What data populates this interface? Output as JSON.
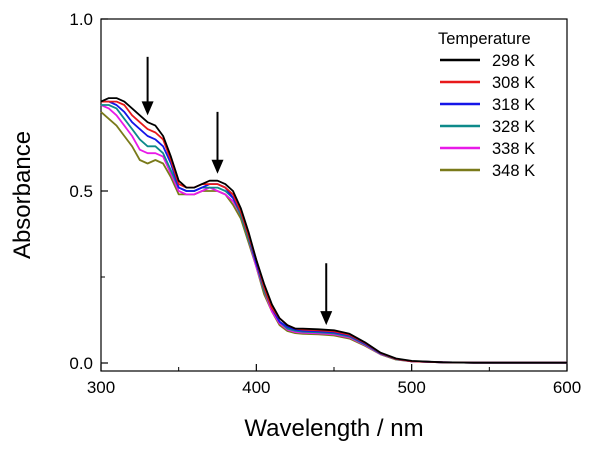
{
  "chart_data": {
    "type": "line",
    "title": "",
    "xlabel": "Wavelength / nm",
    "ylabel": "Absorbance",
    "xlim": [
      300,
      600
    ],
    "ylim": [
      0.0,
      1.0
    ],
    "xticks": [
      300,
      400,
      500,
      600
    ],
    "xtick_labels": [
      "300",
      "400",
      "500",
      "600"
    ],
    "yticks": [
      0.0,
      0.5,
      1.0
    ],
    "ytick_labels": [
      "0.0",
      "0.5",
      "1.0"
    ],
    "grid": false,
    "legend": {
      "title": "Temperature",
      "placement": "top-right"
    },
    "x": [
      300,
      305,
      310,
      315,
      320,
      325,
      330,
      335,
      340,
      345,
      350,
      355,
      360,
      365,
      370,
      375,
      380,
      385,
      390,
      395,
      400,
      405,
      410,
      415,
      420,
      425,
      430,
      440,
      450,
      460,
      470,
      480,
      490,
      500,
      520,
      540,
      560,
      580,
      600
    ],
    "series": [
      {
        "name": "298 K",
        "color": "#000000",
        "values": [
          0.76,
          0.77,
          0.77,
          0.76,
          0.74,
          0.72,
          0.7,
          0.69,
          0.66,
          0.6,
          0.53,
          0.51,
          0.51,
          0.52,
          0.53,
          0.53,
          0.52,
          0.5,
          0.45,
          0.38,
          0.3,
          0.23,
          0.17,
          0.13,
          0.11,
          0.1,
          0.1,
          0.098,
          0.095,
          0.085,
          0.06,
          0.03,
          0.013,
          0.006,
          0.002,
          0.001,
          0.001,
          0.001,
          0.001
        ]
      },
      {
        "name": "308 K",
        "color": "#e8191b",
        "values": [
          0.76,
          0.76,
          0.76,
          0.75,
          0.72,
          0.7,
          0.68,
          0.67,
          0.65,
          0.59,
          0.52,
          0.51,
          0.51,
          0.52,
          0.52,
          0.52,
          0.51,
          0.49,
          0.44,
          0.37,
          0.3,
          0.22,
          0.16,
          0.13,
          0.11,
          0.1,
          0.097,
          0.095,
          0.092,
          0.082,
          0.058,
          0.029,
          0.012,
          0.005,
          0.002,
          0.001,
          0.001,
          0.001,
          0.001
        ]
      },
      {
        "name": "318 K",
        "color": "#1515e8",
        "values": [
          0.76,
          0.76,
          0.75,
          0.73,
          0.7,
          0.68,
          0.66,
          0.65,
          0.63,
          0.58,
          0.51,
          0.5,
          0.5,
          0.51,
          0.52,
          0.52,
          0.51,
          0.48,
          0.44,
          0.37,
          0.29,
          0.22,
          0.16,
          0.12,
          0.105,
          0.097,
          0.094,
          0.092,
          0.089,
          0.08,
          0.056,
          0.028,
          0.012,
          0.005,
          0.002,
          0.001,
          0.001,
          0.001,
          0.001
        ]
      },
      {
        "name": "328 K",
        "color": "#0d8a8a",
        "values": [
          0.75,
          0.75,
          0.74,
          0.71,
          0.68,
          0.65,
          0.63,
          0.63,
          0.61,
          0.56,
          0.51,
          0.5,
          0.5,
          0.51,
          0.51,
          0.51,
          0.5,
          0.48,
          0.43,
          0.36,
          0.29,
          0.21,
          0.16,
          0.12,
          0.1,
          0.094,
          0.091,
          0.089,
          0.086,
          0.077,
          0.054,
          0.027,
          0.011,
          0.005,
          0.002,
          0.001,
          0.001,
          0.001,
          0.001
        ]
      },
      {
        "name": "338 K",
        "color": "#e81ae8",
        "values": [
          0.75,
          0.74,
          0.72,
          0.69,
          0.66,
          0.62,
          0.61,
          0.61,
          0.6,
          0.55,
          0.5,
          0.49,
          0.49,
          0.5,
          0.51,
          0.5,
          0.49,
          0.47,
          0.43,
          0.36,
          0.28,
          0.21,
          0.15,
          0.115,
          0.097,
          0.09,
          0.088,
          0.086,
          0.083,
          0.074,
          0.052,
          0.026,
          0.011,
          0.005,
          0.002,
          0.001,
          0.001,
          0.001,
          0.001
        ]
      },
      {
        "name": "348 K",
        "color": "#7a7a1a",
        "values": [
          0.73,
          0.71,
          0.69,
          0.66,
          0.63,
          0.59,
          0.58,
          0.59,
          0.58,
          0.54,
          0.49,
          0.49,
          0.49,
          0.5,
          0.5,
          0.5,
          0.49,
          0.46,
          0.42,
          0.35,
          0.28,
          0.2,
          0.15,
          0.11,
          0.093,
          0.087,
          0.085,
          0.083,
          0.08,
          0.071,
          0.05,
          0.025,
          0.01,
          0.005,
          0.002,
          0.001,
          0.001,
          0.001,
          0.001
        ]
      }
    ],
    "annotations": [
      {
        "type": "arrow",
        "direction": "down",
        "x": 330,
        "y_from": 0.89,
        "y_to": 0.72
      },
      {
        "type": "arrow",
        "direction": "down",
        "x": 375,
        "y_from": 0.73,
        "y_to": 0.55
      },
      {
        "type": "arrow",
        "direction": "down",
        "x": 445,
        "y_from": 0.29,
        "y_to": 0.11
      }
    ]
  }
}
